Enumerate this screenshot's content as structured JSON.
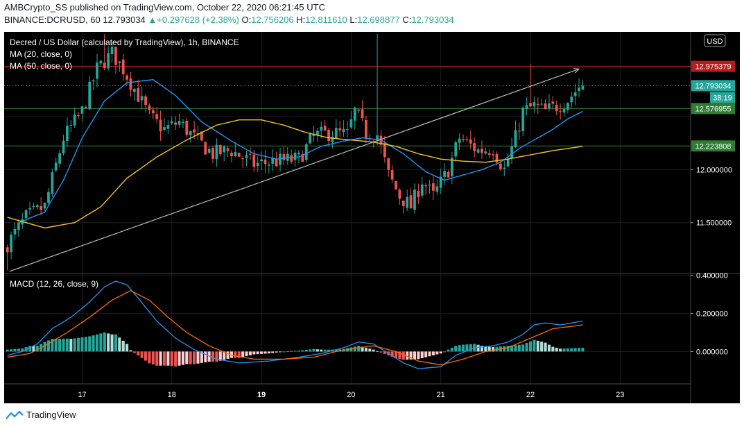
{
  "header": {
    "publisher": "AMBCrypto_SS published on TradingView.com, October 22, 2020 06:21:45 UTC",
    "symbol": "BINANCE:DCRUSD, 60",
    "last": "12.793034",
    "change_arrow": "▲",
    "change": "+0.297628 (+2.38%)",
    "o_label": "O:",
    "o": "12.756206",
    "h_label": "H:",
    "h": "12.811610",
    "l_label": "L:",
    "l": "12.698877",
    "c_label": "C:",
    "c": "12.793034"
  },
  "footer": {
    "brand": "TradingView",
    "icon": "tradingview-logo-icon"
  },
  "colors": {
    "background": "#000000",
    "bull": "#26a69a",
    "bear": "#ef5350",
    "ma20": "#2196f3",
    "ma50": "#f5c518",
    "macd": "#2196f3",
    "signal": "#ff6d00",
    "trendline": "#bdbdbd",
    "resistance": "#b71c1c",
    "support": "#2e7d32"
  },
  "chart_data": [
    {
      "type": "candlestick",
      "title": "Decred / US Dollar (calculated by TradingView), 1h, BINANCE",
      "currency_label": "USD",
      "indicators": [
        "MA (20, close, 0)",
        "MA (50, close, 0)"
      ],
      "x_ticks": [
        "17",
        "18",
        "19",
        "20",
        "21",
        "22",
        "23"
      ],
      "x_tick_bars": [
        20,
        44,
        68,
        92,
        116,
        140,
        164
      ],
      "total_bars": 183,
      "ylim": [
        11.02,
        13.3
      ],
      "y_ticks": [
        {
          "value": 12.0,
          "label": "12.000000"
        },
        {
          "value": 11.5,
          "label": "11.500000"
        }
      ],
      "price_tags": [
        {
          "value": 12.975379,
          "label": "12.975379",
          "color": "#b71c1c"
        },
        {
          "value": 12.793034,
          "label": "12.793034",
          "color": "#26a69a",
          "countdown": "38:19"
        },
        {
          "value": 12.576955,
          "label": "12.576955",
          "color": "#2e7d32"
        },
        {
          "value": 12.223808,
          "label": "12.223808",
          "color": "#2e7d32"
        }
      ],
      "trendline": {
        "from": [
          0,
          11.04
        ],
        "to": [
          153,
          12.95
        ]
      },
      "close_key": [
        [
          0,
          11.3
        ],
        [
          5,
          11.55
        ],
        [
          10,
          11.65
        ],
        [
          15,
          12.3
        ],
        [
          20,
          12.55
        ],
        [
          24,
          12.95
        ],
        [
          28,
          13.1
        ],
        [
          31,
          12.95
        ],
        [
          35,
          12.7
        ],
        [
          38,
          12.5
        ],
        [
          42,
          12.38
        ],
        [
          46,
          12.45
        ],
        [
          50,
          12.3
        ],
        [
          55,
          12.15
        ],
        [
          60,
          12.18
        ],
        [
          66,
          12.05
        ],
        [
          72,
          12.08
        ],
        [
          78,
          12.1
        ],
        [
          82,
          12.32
        ],
        [
          87,
          12.35
        ],
        [
          91,
          12.33
        ],
        [
          93,
          12.55
        ],
        [
          96,
          12.35
        ],
        [
          99,
          12.33
        ],
        [
          102,
          11.95
        ],
        [
          105,
          11.75
        ],
        [
          108,
          11.65
        ],
        [
          111,
          11.9
        ],
        [
          114,
          11.75
        ],
        [
          118,
          12.0
        ],
        [
          121,
          12.3
        ],
        [
          126,
          12.18
        ],
        [
          130,
          12.2
        ],
        [
          133,
          12.0
        ],
        [
          136,
          12.3
        ],
        [
          138,
          12.55
        ],
        [
          141,
          12.6
        ],
        [
          144,
          12.55
        ],
        [
          147,
          12.6
        ],
        [
          150,
          12.66
        ],
        [
          153,
          12.78
        ],
        [
          154,
          12.8
        ]
      ],
      "ma20_key": [
        [
          3,
          11.5
        ],
        [
          10,
          11.6
        ],
        [
          15,
          11.9
        ],
        [
          20,
          12.3
        ],
        [
          26,
          12.65
        ],
        [
          32,
          12.82
        ],
        [
          39,
          12.85
        ],
        [
          45,
          12.7
        ],
        [
          52,
          12.45
        ],
        [
          60,
          12.27
        ],
        [
          66,
          12.15
        ],
        [
          72,
          12.1
        ],
        [
          78,
          12.12
        ],
        [
          84,
          12.22
        ],
        [
          90,
          12.27
        ],
        [
          95,
          12.3
        ],
        [
          100,
          12.28
        ],
        [
          106,
          12.15
        ],
        [
          112,
          11.98
        ],
        [
          117,
          11.9
        ],
        [
          122,
          11.95
        ],
        [
          127,
          12.0
        ],
        [
          132,
          12.07
        ],
        [
          137,
          12.2
        ],
        [
          142,
          12.3
        ],
        [
          146,
          12.38
        ],
        [
          150,
          12.48
        ],
        [
          154,
          12.55
        ]
      ],
      "ma50_key": [
        [
          0,
          11.55
        ],
        [
          10,
          11.45
        ],
        [
          18,
          11.5
        ],
        [
          25,
          11.65
        ],
        [
          32,
          11.92
        ],
        [
          40,
          12.12
        ],
        [
          48,
          12.28
        ],
        [
          56,
          12.42
        ],
        [
          62,
          12.47
        ],
        [
          68,
          12.47
        ],
        [
          74,
          12.42
        ],
        [
          80,
          12.35
        ],
        [
          86,
          12.3
        ],
        [
          92,
          12.28
        ],
        [
          98,
          12.26
        ],
        [
          104,
          12.22
        ],
        [
          110,
          12.15
        ],
        [
          116,
          12.1
        ],
        [
          122,
          12.08
        ],
        [
          128,
          12.07
        ],
        [
          134,
          12.1
        ],
        [
          140,
          12.14
        ],
        [
          146,
          12.18
        ],
        [
          150,
          12.2
        ],
        [
          154,
          12.22
        ]
      ]
    },
    {
      "type": "macd",
      "title": "MACD (12, 26, close, 9)",
      "ylim": [
        -0.17,
        0.41
      ],
      "y_ticks": [
        {
          "value": 0.4,
          "label": "0.400000"
        },
        {
          "value": 0.2,
          "label": "0.200000"
        },
        {
          "value": 0.0,
          "label": "0.000000"
        }
      ],
      "macd_key": [
        [
          0,
          -0.02
        ],
        [
          4,
          0.0
        ],
        [
          8,
          0.04
        ],
        [
          12,
          0.12
        ],
        [
          17,
          0.18
        ],
        [
          22,
          0.26
        ],
        [
          26,
          0.34
        ],
        [
          29,
          0.37
        ],
        [
          32,
          0.35
        ],
        [
          35,
          0.28
        ],
        [
          40,
          0.16
        ],
        [
          45,
          0.07
        ],
        [
          50,
          0.01
        ],
        [
          56,
          -0.04
        ],
        [
          62,
          -0.06
        ],
        [
          70,
          -0.05
        ],
        [
          78,
          -0.03
        ],
        [
          84,
          -0.01
        ],
        [
          90,
          0.02
        ],
        [
          94,
          0.05
        ],
        [
          98,
          0.04
        ],
        [
          102,
          -0.01
        ],
        [
          106,
          -0.06
        ],
        [
          110,
          -0.09
        ],
        [
          116,
          -0.08
        ],
        [
          120,
          -0.02
        ],
        [
          125,
          0.02
        ],
        [
          130,
          0.03
        ],
        [
          134,
          0.05
        ],
        [
          138,
          0.09
        ],
        [
          141,
          0.14
        ],
        [
          144,
          0.15
        ],
        [
          148,
          0.14
        ],
        [
          154,
          0.16
        ]
      ],
      "signal_key": [
        [
          0,
          -0.03
        ],
        [
          6,
          -0.01
        ],
        [
          10,
          0.03
        ],
        [
          16,
          0.1
        ],
        [
          22,
          0.18
        ],
        [
          28,
          0.27
        ],
        [
          33,
          0.32
        ],
        [
          38,
          0.27
        ],
        [
          43,
          0.18
        ],
        [
          48,
          0.1
        ],
        [
          54,
          0.03
        ],
        [
          60,
          -0.02
        ],
        [
          66,
          -0.04
        ],
        [
          74,
          -0.04
        ],
        [
          82,
          -0.03
        ],
        [
          88,
          0.0
        ],
        [
          94,
          0.02
        ],
        [
          98,
          0.03
        ],
        [
          104,
          0.0
        ],
        [
          110,
          -0.05
        ],
        [
          116,
          -0.07
        ],
        [
          122,
          -0.04
        ],
        [
          128,
          0.0
        ],
        [
          134,
          0.02
        ],
        [
          140,
          0.07
        ],
        [
          146,
          0.12
        ],
        [
          154,
          0.14
        ]
      ]
    }
  ]
}
